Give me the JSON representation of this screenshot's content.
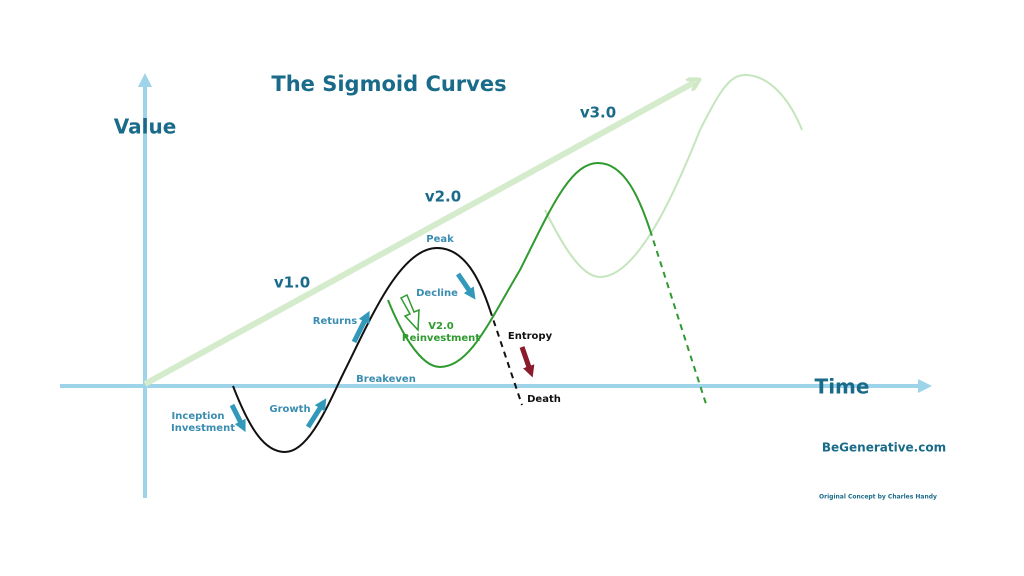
{
  "title": "The Sigmoid Curves",
  "axes": {
    "y_label": "Value",
    "x_label": "Time"
  },
  "versions": {
    "v1": "v1.0",
    "v2": "v2.0",
    "v3": "v3.0"
  },
  "annotations": {
    "peak": "Peak",
    "decline": "Decline",
    "returns": "Returns",
    "reinvestment": [
      "V2.0",
      "Reinvestment"
    ],
    "entropy": "Entropy",
    "death": "Death",
    "breakeven": "Breakeven",
    "growth": "Growth",
    "inception": [
      "Inception",
      "Investment"
    ]
  },
  "footer": {
    "site": "BeGenerative.com",
    "credit": "Original Concept by Charles Handy"
  }
}
